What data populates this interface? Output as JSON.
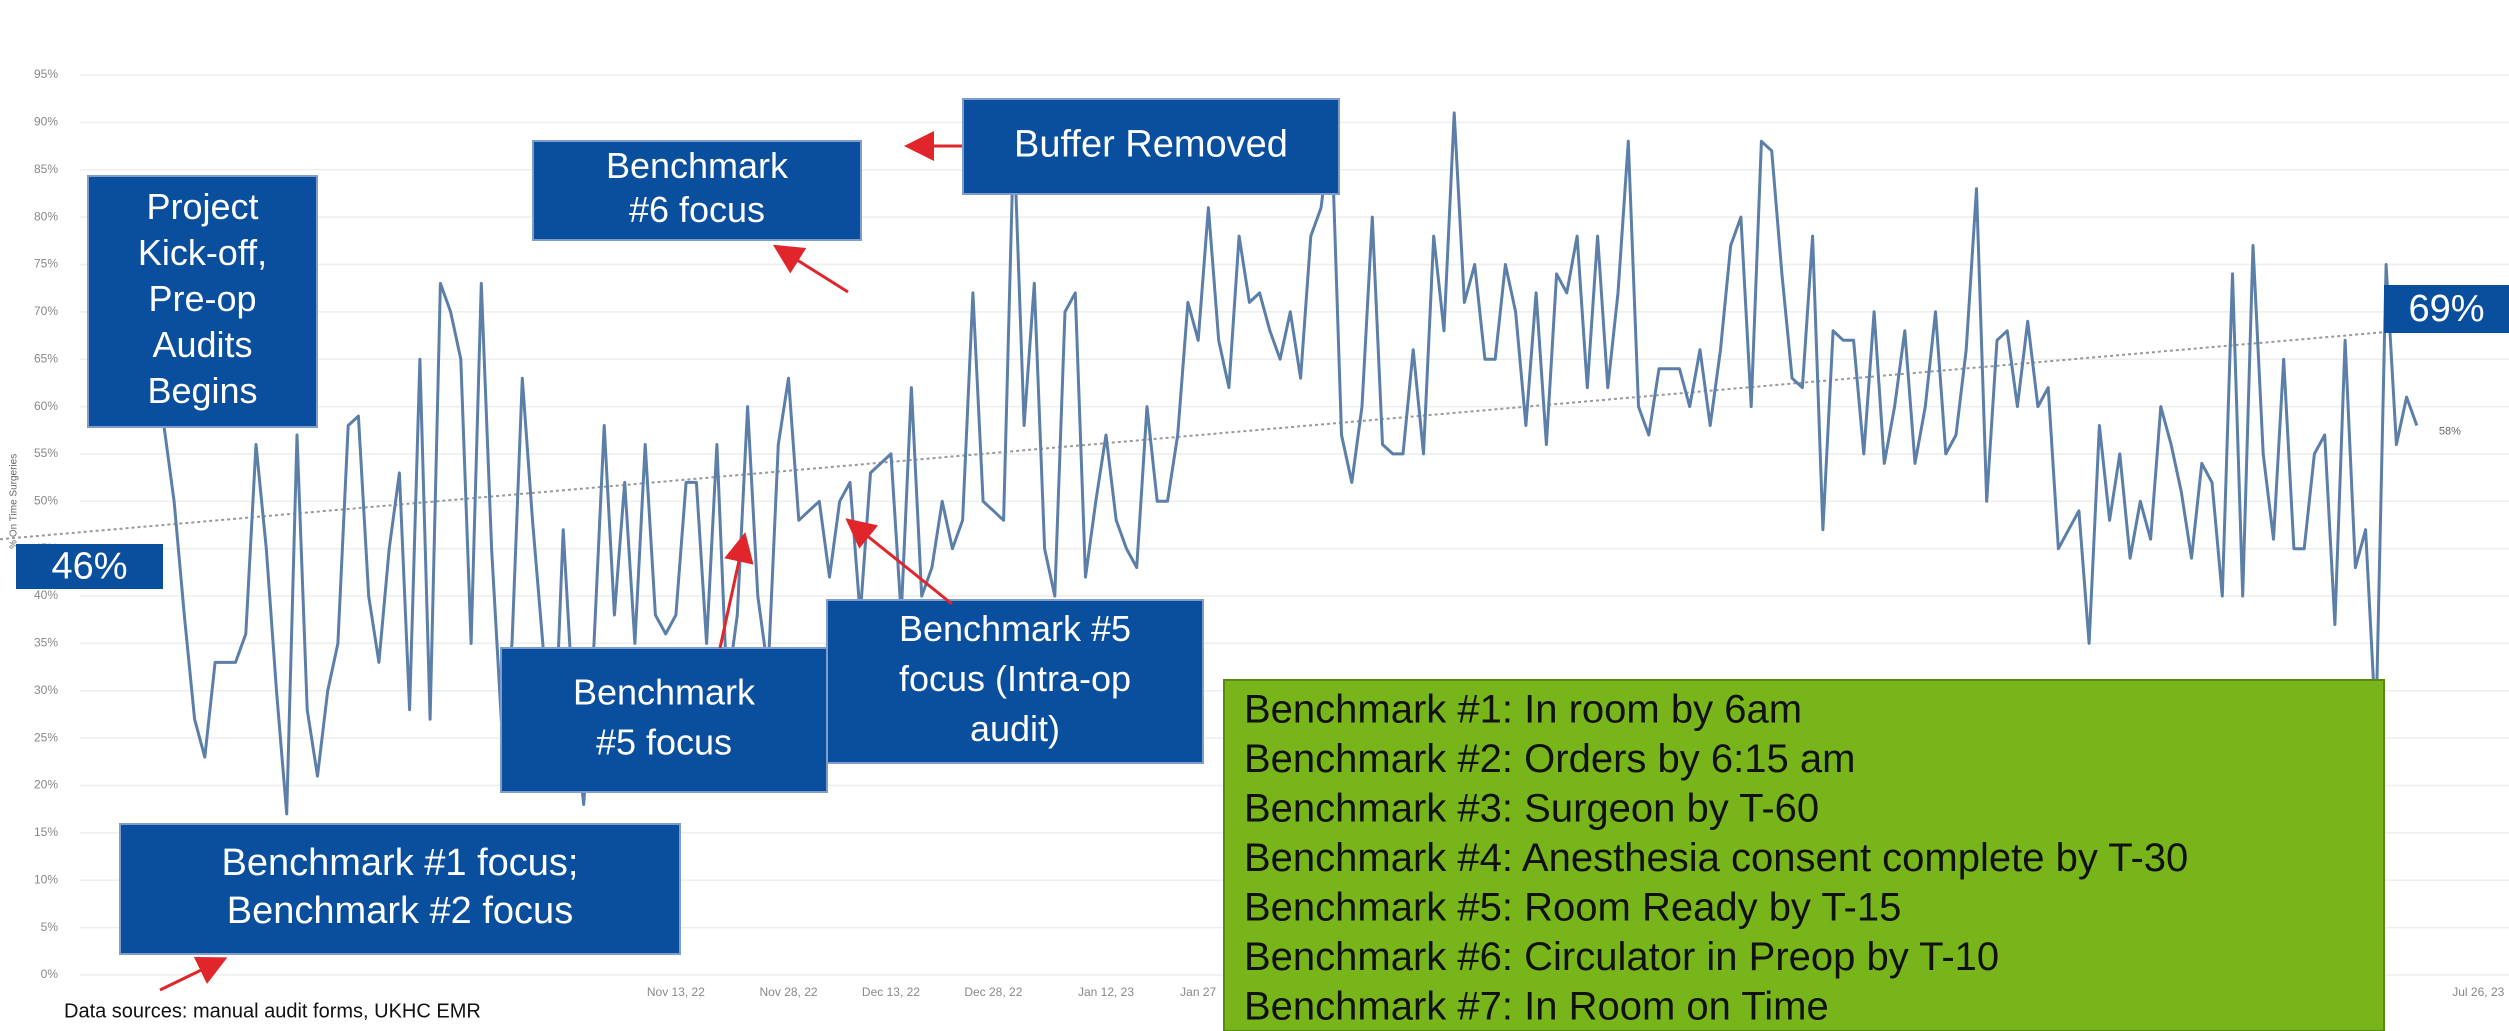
{
  "chart_data": {
    "type": "line",
    "y_label": "% On Time Surgeries",
    "color": "#5b7fa8",
    "values": [
      58,
      50,
      38,
      27,
      23,
      33,
      33,
      33,
      36,
      56,
      45,
      30,
      17,
      57,
      28,
      21,
      30,
      35,
      58,
      59,
      40,
      33,
      45,
      53,
      28,
      65,
      27,
      73,
      70,
      65,
      35,
      73,
      45,
      26,
      35,
      63,
      48,
      35,
      20,
      47,
      28,
      18,
      35,
      58,
      38,
      52,
      35,
      56,
      38,
      36,
      38,
      52,
      52,
      35,
      56,
      30,
      38,
      60,
      40,
      32,
      56,
      63,
      48,
      49,
      50,
      42,
      50,
      52,
      38,
      53,
      54,
      55,
      38,
      62,
      40,
      43,
      50,
      45,
      48,
      72,
      50,
      49,
      48,
      89,
      58,
      73,
      45,
      40,
      70,
      72,
      42,
      50,
      57,
      48,
      45,
      43,
      60,
      50,
      50,
      57,
      71,
      67,
      81,
      67,
      62,
      78,
      71,
      72,
      68,
      65,
      70,
      63,
      78,
      81,
      90,
      57,
      52,
      60,
      80,
      56,
      55,
      55,
      66,
      55,
      78,
      68,
      91,
      71,
      75,
      65,
      65,
      75,
      70,
      58,
      72,
      56,
      74,
      72,
      78,
      62,
      78,
      62,
      72,
      88,
      60,
      57,
      64,
      64,
      64,
      60,
      66,
      58,
      66,
      77,
      80,
      60,
      88,
      87,
      74,
      63,
      62,
      78,
      47,
      68,
      67,
      67,
      55,
      70,
      54,
      60,
      68,
      54,
      60,
      70,
      55,
      57,
      66,
      83,
      50,
      67,
      68,
      60,
      69,
      60,
      62,
      45,
      47,
      49,
      35,
      58,
      48,
      55,
      44,
      50,
      46,
      60,
      56,
      51,
      44,
      54,
      52,
      40,
      74,
      40,
      77,
      55,
      46,
      65,
      45,
      45,
      55,
      57,
      37,
      67,
      43,
      47,
      26,
      75,
      56,
      61,
      58
    ],
    "end_label": "58%",
    "xlim": [
      -16,
      229
    ],
    "xticks": [
      {
        "value": 50,
        "label": "Nov 13, 22"
      },
      {
        "value": 61,
        "label": "Nov 28, 22"
      },
      {
        "value": 71,
        "label": "Dec 13, 22"
      },
      {
        "value": 81,
        "label": "Dec 28, 22"
      },
      {
        "value": 92,
        "label": "Jan 12, 23"
      },
      {
        "value": 101,
        "label": "Jan 27"
      },
      {
        "value": 226,
        "label": "Jul 26, 23"
      }
    ],
    "ylim": [
      0,
      95
    ],
    "yticks": [
      {
        "value": 0,
        "label": "0%"
      },
      {
        "value": 5,
        "label": "5%"
      },
      {
        "value": 10,
        "label": "10%"
      },
      {
        "value": 15,
        "label": "15%"
      },
      {
        "value": 20,
        "label": "20%"
      },
      {
        "value": 25,
        "label": "25%"
      },
      {
        "value": 30,
        "label": "30%"
      },
      {
        "value": 35,
        "label": "35%"
      },
      {
        "value": 40,
        "label": "40%"
      },
      {
        "value": 45,
        "label": "45%"
      },
      {
        "value": 50,
        "label": "50%"
      },
      {
        "value": 55,
        "label": "55%"
      },
      {
        "value": 60,
        "label": "60%"
      },
      {
        "value": 65,
        "label": "65%"
      },
      {
        "value": 70,
        "label": "70%"
      },
      {
        "value": 75,
        "label": "75%"
      },
      {
        "value": 80,
        "label": "80%"
      },
      {
        "value": 85,
        "label": "85%"
      },
      {
        "value": 90,
        "label": "90%"
      },
      {
        "value": 95,
        "label": "95%"
      }
    ],
    "grid": true,
    "trendline": {
      "values": [
        46,
        69
      ],
      "labels": [
        "46%",
        "69%"
      ]
    },
    "annotations": [
      {
        "lines": [
          "Project",
          "Kick-off,",
          "Pre-op",
          "Audits",
          "Begins"
        ]
      },
      {
        "lines": [
          "Benchmark",
          "#6 focus"
        ]
      },
      {
        "lines": [
          "Buffer Removed"
        ]
      },
      {
        "lines": [
          "Benchmark",
          "#5 focus"
        ]
      },
      {
        "lines": [
          "Benchmark #5",
          "focus (Intra-op",
          "audit)"
        ]
      },
      {
        "lines": [
          "Benchmark #1  focus;",
          "Benchmark #2 focus"
        ]
      }
    ],
    "benchmarks": [
      "Benchmark #1: In room by 6am",
      "Benchmark #2: Orders by 6:15 am",
      "Benchmark #3: Surgeon by T-60",
      "Benchmark #4: Anesthesia consent complete by T-30",
      "Benchmark #5: Room Ready by T-15",
      "Benchmark #6: Circulator in Preop by T-10",
      "Benchmark #7:  In Room on Time"
    ],
    "footer": "Data sources: manual audit forms, UKHC EMR"
  }
}
